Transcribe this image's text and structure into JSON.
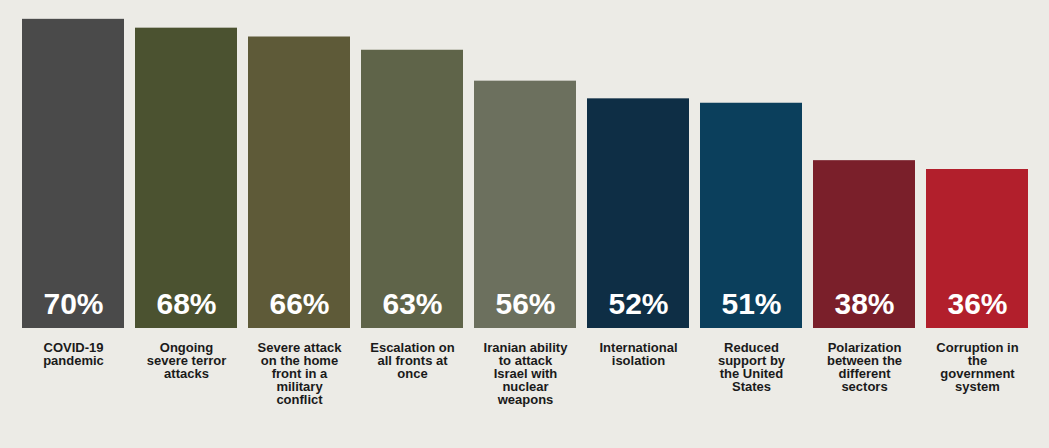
{
  "chart_data": {
    "type": "bar",
    "categories": [
      "COVID-19 pandemic",
      "Ongoing severe terror attacks",
      "Severe attack on the home front in a military conflict",
      "Escalation on all fronts at once",
      "Iranian ability to attack Israel with nuclear weapons",
      "International isolation",
      "Reduced support by the United States",
      "Polarization between the different sectors",
      "Corruption in the government system"
    ],
    "values": [
      70,
      68,
      66,
      63,
      56,
      52,
      51,
      38,
      36
    ],
    "value_labels": [
      "70%",
      "68%",
      "66%",
      "63%",
      "56%",
      "52%",
      "51%",
      "38%",
      "36%"
    ],
    "colors": [
      "#4a4a4a",
      "#4b5230",
      "#5e5a38",
      "#5f6449",
      "#6c705e",
      "#0e2e45",
      "#0b3f5c",
      "#7a1f2a",
      "#b21f2c"
    ],
    "ylim": [
      0,
      72
    ],
    "data_labels": true,
    "tick_labels": "x",
    "grid": false
  }
}
